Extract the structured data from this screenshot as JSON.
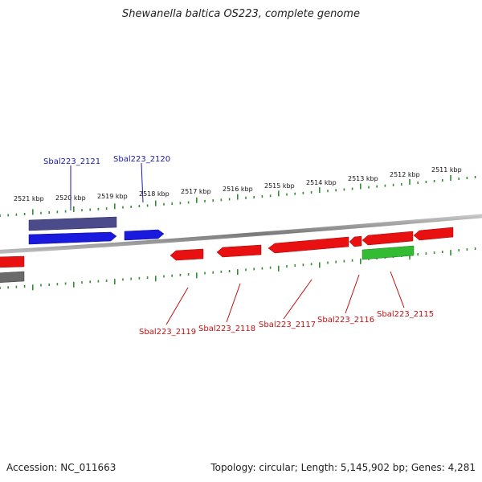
{
  "title": "Shewanella baltica OS223, complete genome",
  "footer": {
    "accession": "Accession: NC_011663",
    "summary": "Topology: circular; Length: 5,145,902 bp; Genes: 4,281"
  },
  "colors": {
    "backbone": "#8a8a8a",
    "tick": "#2f8f2f",
    "forward": "#1a1adf",
    "forward_label": "#1a1aa8",
    "reverse": "#e81010",
    "reverse_label": "#c01010",
    "pseudo_dark": "#4b4b8c",
    "gray_gene": "#6a6a6a",
    "green_gene": "#33bb33"
  },
  "ruler": {
    "labels": [
      "2521 kbp",
      "2520 kbp",
      "2519 kbp",
      "2518 kbp",
      "2517 kbp",
      "2516 kbp",
      "2515 kbp",
      "2514 kbp",
      "2513 kbp",
      "2512 kbp",
      "2511 kbp"
    ]
  },
  "genes": {
    "labeled": [
      {
        "name": "Sbal223_2121",
        "strand": "forward"
      },
      {
        "name": "Sbal223_2120",
        "strand": "forward"
      },
      {
        "name": "Sbal223_2119",
        "strand": "reverse"
      },
      {
        "name": "Sbal223_2118",
        "strand": "reverse"
      },
      {
        "name": "Sbal223_2117",
        "strand": "reverse"
      },
      {
        "name": "Sbal223_2116",
        "strand": "reverse"
      },
      {
        "name": "Sbal223_2115",
        "strand": "reverse"
      }
    ]
  }
}
